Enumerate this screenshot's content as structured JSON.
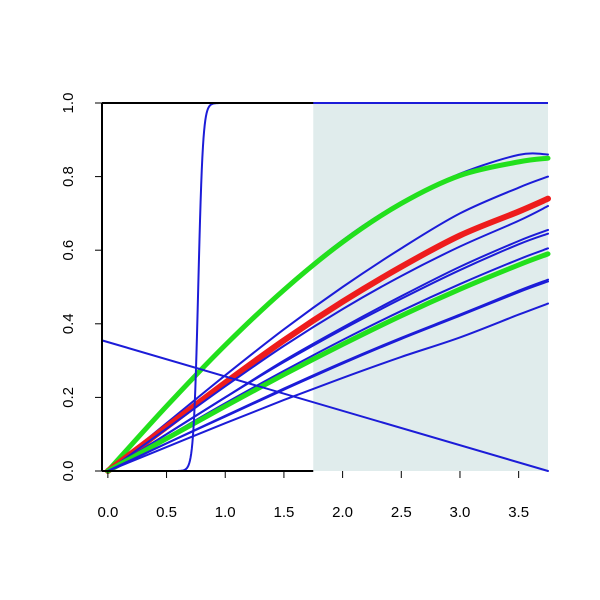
{
  "chart_data": {
    "type": "line",
    "title": "",
    "xlabel": "",
    "ylabel": "",
    "xlim": [
      -0.05,
      3.75
    ],
    "ylim": [
      0,
      1
    ],
    "x_ticks": [
      "0.0",
      "0.5",
      "1.0",
      "1.5",
      "2.0",
      "2.5",
      "3.0",
      "3.5"
    ],
    "y_ticks": [
      "0.0",
      "0.2",
      "0.4",
      "0.6",
      "0.8",
      "1.0"
    ],
    "shaded_region": {
      "x_from": 1.75,
      "x_to": 3.75,
      "color": "#e0ecec"
    },
    "colors": {
      "blue": "#1c1cd8",
      "red": "#ee1c1c",
      "green": "#22e01c",
      "shade": "#e0ecec"
    },
    "series": [
      {
        "kind": "curve",
        "color": "blue",
        "width": 2,
        "points": [
          [
            0,
            0
          ],
          [
            0.5,
            0.178
          ],
          [
            1,
            0.345
          ],
          [
            1.5,
            0.496
          ],
          [
            2,
            0.627
          ],
          [
            2.5,
            0.731
          ],
          [
            3,
            0.808
          ],
          [
            3.5,
            0.859
          ],
          [
            3.75,
            0.86
          ]
        ]
      },
      {
        "kind": "curve",
        "color": "green",
        "width": 5,
        "points": [
          [
            0,
            0
          ],
          [
            0.5,
            0.176
          ],
          [
            1,
            0.342
          ],
          [
            1.5,
            0.492
          ],
          [
            2,
            0.622
          ],
          [
            2.5,
            0.727
          ],
          [
            3,
            0.803
          ],
          [
            3.5,
            0.84
          ],
          [
            3.75,
            0.85
          ]
        ]
      },
      {
        "kind": "curve",
        "color": "blue",
        "width": 2,
        "points": [
          [
            0,
            0
          ],
          [
            0.5,
            0.13
          ],
          [
            1,
            0.26
          ],
          [
            1.5,
            0.385
          ],
          [
            2,
            0.5
          ],
          [
            2.5,
            0.605
          ],
          [
            3,
            0.7
          ],
          [
            3.5,
            0.77
          ],
          [
            3.75,
            0.8
          ]
        ]
      },
      {
        "kind": "curve",
        "color": "red",
        "width": 6,
        "points": [
          [
            0,
            0
          ],
          [
            0.5,
            0.12
          ],
          [
            1,
            0.24
          ],
          [
            1.5,
            0.355
          ],
          [
            2,
            0.46
          ],
          [
            2.5,
            0.555
          ],
          [
            3,
            0.64
          ],
          [
            3.5,
            0.705
          ],
          [
            3.75,
            0.74
          ]
        ]
      },
      {
        "kind": "curve",
        "color": "blue",
        "width": 2,
        "points": [
          [
            0,
            0
          ],
          [
            0.5,
            0.115
          ],
          [
            1,
            0.23
          ],
          [
            1.5,
            0.34
          ],
          [
            2,
            0.44
          ],
          [
            2.5,
            0.53
          ],
          [
            3,
            0.61
          ],
          [
            3.5,
            0.68
          ],
          [
            3.75,
            0.72
          ]
        ]
      },
      {
        "kind": "curve",
        "color": "blue",
        "width": 2,
        "points": [
          [
            0,
            0
          ],
          [
            0.5,
            0.1
          ],
          [
            1,
            0.2
          ],
          [
            1.5,
            0.3
          ],
          [
            2,
            0.39
          ],
          [
            2.5,
            0.475
          ],
          [
            3,
            0.555
          ],
          [
            3.5,
            0.625
          ],
          [
            3.75,
            0.655
          ]
        ]
      },
      {
        "kind": "curve",
        "color": "blue",
        "width": 2,
        "points": [
          [
            0,
            0
          ],
          [
            0.5,
            0.1
          ],
          [
            1,
            0.2
          ],
          [
            1.5,
            0.296
          ],
          [
            2,
            0.385
          ],
          [
            2.5,
            0.468
          ],
          [
            3,
            0.546
          ],
          [
            3.5,
            0.616
          ],
          [
            3.75,
            0.645
          ]
        ]
      },
      {
        "kind": "curve",
        "color": "blue",
        "width": 2,
        "points": [
          [
            0,
            0
          ],
          [
            0.5,
            0.092
          ],
          [
            1,
            0.184
          ],
          [
            1.5,
            0.272
          ],
          [
            2,
            0.356
          ],
          [
            2.5,
            0.435
          ],
          [
            3,
            0.508
          ],
          [
            3.5,
            0.575
          ],
          [
            3.75,
            0.605
          ]
        ]
      },
      {
        "kind": "curve",
        "color": "green",
        "width": 5,
        "points": [
          [
            0,
            0
          ],
          [
            0.5,
            0.088
          ],
          [
            1,
            0.176
          ],
          [
            1.5,
            0.262
          ],
          [
            2,
            0.344
          ],
          [
            2.5,
            0.422
          ],
          [
            3,
            0.494
          ],
          [
            3.5,
            0.56
          ],
          [
            3.75,
            0.59
          ]
        ]
      },
      {
        "kind": "curve",
        "color": "blue",
        "width": 2,
        "points": [
          [
            0,
            0
          ],
          [
            0.5,
            0.075
          ],
          [
            1,
            0.15
          ],
          [
            1.5,
            0.224
          ],
          [
            2,
            0.295
          ],
          [
            2.5,
            0.362
          ],
          [
            3,
            0.425
          ],
          [
            3.5,
            0.49
          ],
          [
            3.75,
            0.52
          ]
        ]
      },
      {
        "kind": "curve",
        "color": "blue",
        "width": 2,
        "points": [
          [
            0,
            0
          ],
          [
            0.5,
            0.075
          ],
          [
            1,
            0.148
          ],
          [
            1.5,
            0.221
          ],
          [
            2,
            0.292
          ],
          [
            2.5,
            0.359
          ],
          [
            3,
            0.422
          ],
          [
            3.5,
            0.486
          ],
          [
            3.75,
            0.515
          ]
        ]
      },
      {
        "kind": "curve",
        "color": "blue",
        "width": 2,
        "points": [
          [
            0,
            0
          ],
          [
            0.5,
            0.065
          ],
          [
            1,
            0.13
          ],
          [
            1.5,
            0.193
          ],
          [
            2,
            0.253
          ],
          [
            2.5,
            0.31
          ],
          [
            3,
            0.363
          ],
          [
            3.5,
            0.425
          ],
          [
            3.75,
            0.455
          ]
        ]
      },
      {
        "kind": "curve",
        "color": "blue",
        "width": 2,
        "points": [
          [
            -0.05,
            0.355
          ],
          [
            3.75,
            0
          ]
        ]
      },
      {
        "kind": "sigmoid",
        "color": "blue",
        "width": 2,
        "center": 0.77,
        "scale": 0.02
      }
    ]
  }
}
